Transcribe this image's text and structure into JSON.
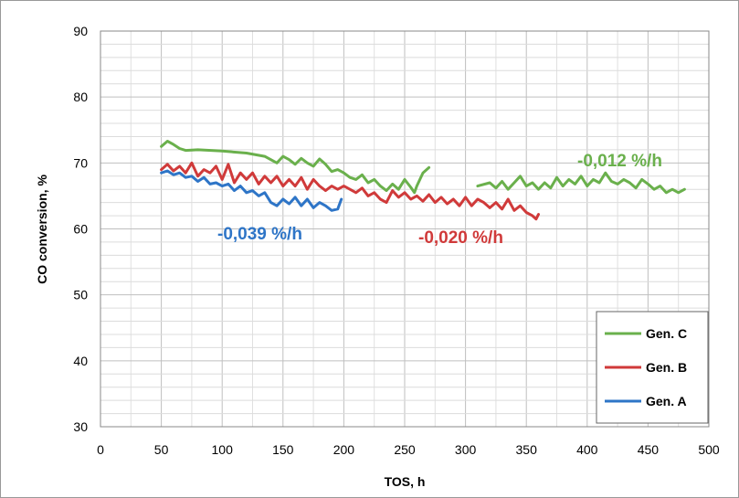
{
  "chart_data": {
    "type": "line",
    "xlabel": "TOS, h",
    "ylabel": "CO conversion, %",
    "xlim": [
      0,
      500
    ],
    "ylim": [
      30,
      90
    ],
    "xticks": [
      "0",
      "50",
      "100",
      "150",
      "200",
      "250",
      "300",
      "350",
      "400",
      "450",
      "500"
    ],
    "yticks": [
      "30",
      "40",
      "50",
      "60",
      "70",
      "80",
      "90"
    ],
    "grid": true,
    "legend_position": "bottom-right",
    "series": [
      {
        "name": "Gen. C",
        "color": "#6ab04c",
        "segments": [
          [
            [
              50,
              72.5
            ],
            [
              55,
              73.3
            ],
            [
              60,
              72.8
            ],
            [
              65,
              72.2
            ],
            [
              70,
              71.9
            ],
            [
              80,
              72.0
            ],
            [
              100,
              71.8
            ],
            [
              120,
              71.5
            ],
            [
              135,
              71.0
            ],
            [
              145,
              70.0
            ],
            [
              150,
              71.0
            ],
            [
              155,
              70.5
            ],
            [
              160,
              69.8
            ],
            [
              165,
              70.7
            ],
            [
              170,
              70.0
            ],
            [
              175,
              69.5
            ],
            [
              180,
              70.6
            ],
            [
              185,
              69.8
            ],
            [
              190,
              68.7
            ],
            [
              195,
              69.0
            ],
            [
              200,
              68.5
            ],
            [
              205,
              67.8
            ],
            [
              210,
              67.5
            ],
            [
              215,
              68.2
            ],
            [
              220,
              67.0
            ],
            [
              225,
              67.5
            ],
            [
              230,
              66.5
            ],
            [
              235,
              65.8
            ],
            [
              240,
              66.8
            ],
            [
              245,
              66.0
            ],
            [
              250,
              67.5
            ],
            [
              255,
              66.3
            ],
            [
              258,
              65.5
            ],
            [
              260,
              66.5
            ],
            [
              265,
              68.5
            ],
            [
              270,
              69.3
            ]
          ],
          [
            [
              310,
              66.5
            ],
            [
              320,
              67.0
            ],
            [
              325,
              66.2
            ],
            [
              330,
              67.2
            ],
            [
              335,
              66.0
            ],
            [
              340,
              67.0
            ],
            [
              345,
              68.0
            ],
            [
              350,
              66.5
            ],
            [
              355,
              67.0
            ],
            [
              360,
              66.0
            ],
            [
              365,
              67.0
            ],
            [
              370,
              66.2
            ],
            [
              375,
              67.8
            ],
            [
              380,
              66.5
            ],
            [
              385,
              67.5
            ],
            [
              390,
              66.8
            ],
            [
              395,
              68.0
            ],
            [
              400,
              66.5
            ],
            [
              405,
              67.5
            ],
            [
              410,
              67.0
            ],
            [
              415,
              68.5
            ],
            [
              420,
              67.2
            ],
            [
              425,
              66.8
            ],
            [
              430,
              67.5
            ],
            [
              435,
              67.0
            ],
            [
              440,
              66.2
            ],
            [
              445,
              67.5
            ],
            [
              450,
              66.8
            ],
            [
              455,
              66.0
            ],
            [
              460,
              66.5
            ],
            [
              465,
              65.5
            ],
            [
              470,
              66.0
            ],
            [
              475,
              65.5
            ],
            [
              480,
              66.0
            ]
          ]
        ]
      },
      {
        "name": "Gen. B",
        "color": "#d03a3a",
        "segments": [
          [
            [
              50,
              69.0
            ],
            [
              55,
              69.8
            ],
            [
              60,
              68.8
            ],
            [
              65,
              69.5
            ],
            [
              70,
              68.5
            ],
            [
              75,
              70.0
            ],
            [
              80,
              68.0
            ],
            [
              85,
              69.0
            ],
            [
              90,
              68.5
            ],
            [
              95,
              69.5
            ],
            [
              100,
              67.5
            ],
            [
              105,
              69.8
            ],
            [
              110,
              67.0
            ],
            [
              115,
              68.5
            ],
            [
              120,
              67.5
            ],
            [
              125,
              68.5
            ],
            [
              130,
              66.8
            ],
            [
              135,
              68.0
            ],
            [
              140,
              67.0
            ],
            [
              145,
              68.0
            ],
            [
              150,
              66.5
            ],
            [
              155,
              67.5
            ],
            [
              160,
              66.5
            ],
            [
              165,
              67.8
            ],
            [
              170,
              66.0
            ],
            [
              175,
              67.5
            ],
            [
              180,
              66.5
            ],
            [
              185,
              65.8
            ],
            [
              190,
              66.5
            ],
            [
              195,
              66.0
            ],
            [
              200,
              66.5
            ],
            [
              205,
              66.0
            ],
            [
              210,
              65.5
            ],
            [
              215,
              66.2
            ],
            [
              220,
              65.0
            ],
            [
              225,
              65.5
            ],
            [
              230,
              64.5
            ],
            [
              235,
              64.0
            ],
            [
              240,
              65.8
            ],
            [
              245,
              64.8
            ],
            [
              250,
              65.5
            ],
            [
              255,
              64.5
            ],
            [
              260,
              65.0
            ],
            [
              265,
              64.2
            ],
            [
              270,
              65.2
            ],
            [
              275,
              64.0
            ],
            [
              280,
              64.8
            ],
            [
              285,
              63.8
            ],
            [
              290,
              64.5
            ],
            [
              295,
              63.5
            ],
            [
              300,
              64.8
            ],
            [
              305,
              63.5
            ],
            [
              310,
              64.5
            ],
            [
              315,
              64.0
            ],
            [
              320,
              63.2
            ],
            [
              325,
              64.0
            ],
            [
              330,
              63.0
            ],
            [
              335,
              64.5
            ],
            [
              340,
              62.8
            ],
            [
              345,
              63.5
            ],
            [
              350,
              62.5
            ],
            [
              355,
              62.0
            ],
            [
              358,
              61.5
            ],
            [
              360,
              62.2
            ]
          ]
        ]
      },
      {
        "name": "Gen. A",
        "color": "#2e75c7",
        "segments": [
          [
            [
              50,
              68.5
            ],
            [
              55,
              68.8
            ],
            [
              60,
              68.2
            ],
            [
              65,
              68.5
            ],
            [
              70,
              67.8
            ],
            [
              75,
              68.0
            ],
            [
              80,
              67.2
            ],
            [
              85,
              67.8
            ],
            [
              90,
              66.8
            ],
            [
              95,
              67.0
            ],
            [
              100,
              66.5
            ],
            [
              105,
              66.8
            ],
            [
              110,
              65.8
            ],
            [
              115,
              66.5
            ],
            [
              120,
              65.5
            ],
            [
              125,
              65.8
            ],
            [
              130,
              65.0
            ],
            [
              135,
              65.5
            ],
            [
              140,
              64.0
            ],
            [
              145,
              63.5
            ],
            [
              150,
              64.5
            ],
            [
              155,
              63.8
            ],
            [
              160,
              64.8
            ],
            [
              165,
              63.5
            ],
            [
              170,
              64.5
            ],
            [
              175,
              63.2
            ],
            [
              180,
              64.0
            ],
            [
              185,
              63.5
            ],
            [
              190,
              62.8
            ],
            [
              195,
              63.0
            ],
            [
              198,
              64.5
            ]
          ]
        ]
      }
    ],
    "annotations": [
      {
        "text": "-0,039 %/h",
        "color": "#2e75c7"
      },
      {
        "text": "-0,020 %/h",
        "color": "#d03a3a"
      },
      {
        "text": "-0,012 %/h",
        "color": "#6ab04c"
      }
    ]
  }
}
